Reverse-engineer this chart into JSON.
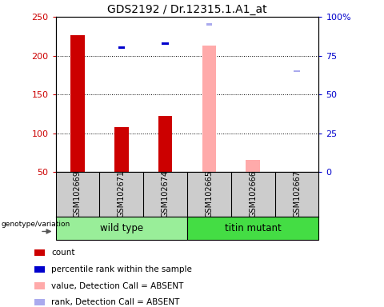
{
  "title": "GDS2192 / Dr.12315.1.A1_at",
  "samples": [
    "GSM102669",
    "GSM102671",
    "GSM102674",
    "GSM102665",
    "GSM102666",
    "GSM102667"
  ],
  "count_values": [
    226,
    108,
    122,
    null,
    null,
    null
  ],
  "rank_values": [
    null,
    80,
    83,
    null,
    null,
    null
  ],
  "absent_value": [
    null,
    null,
    null,
    213,
    65,
    null
  ],
  "absent_rank": [
    null,
    null,
    null,
    95,
    null,
    65
  ],
  "bar_base": 50,
  "ylim_left": [
    50,
    250
  ],
  "ylim_right": [
    0,
    100
  ],
  "yticks_left": [
    50,
    100,
    150,
    200,
    250
  ],
  "ytick_labels_left": [
    "50",
    "100",
    "150",
    "200",
    "250"
  ],
  "yticks_right_vals": [
    0,
    25,
    50,
    75,
    100
  ],
  "ytick_labels_right": [
    "0",
    "25",
    "50",
    "75",
    "100%"
  ],
  "dotted_lines": [
    100,
    150,
    200
  ],
  "red_color": "#cc0000",
  "blue_color": "#0000cc",
  "pink_color": "#ffaaaa",
  "lblue_color": "#aaaaee",
  "group_spans": [
    {
      "start": 0,
      "end": 2,
      "label": "wild type",
      "color": "#99ee99"
    },
    {
      "start": 3,
      "end": 5,
      "label": "titin mutant",
      "color": "#44dd44"
    }
  ],
  "legend_items": [
    {
      "color": "#cc0000",
      "label": "count"
    },
    {
      "color": "#0000cc",
      "label": "percentile rank within the sample"
    },
    {
      "color": "#ffaaaa",
      "label": "value, Detection Call = ABSENT"
    },
    {
      "color": "#aaaaee",
      "label": "rank, Detection Call = ABSENT"
    }
  ]
}
